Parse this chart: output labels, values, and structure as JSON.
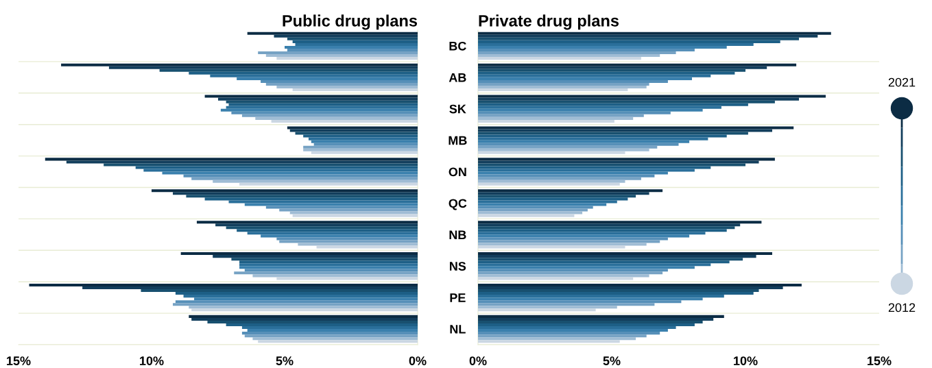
{
  "chart_data": [
    {
      "type": "bar",
      "orientation": "horizontal",
      "title": "Public drug plans",
      "categories": [
        "BC",
        "AB",
        "SK",
        "MB",
        "ON",
        "QC",
        "NB",
        "NS",
        "PE",
        "NL"
      ],
      "xlim": [
        15,
        0
      ],
      "xticks": [
        {
          "value": 15,
          "label": "15%"
        },
        {
          "value": 10,
          "label": "10%"
        },
        {
          "value": 5,
          "label": "5%"
        },
        {
          "value": 0,
          "label": "0%"
        }
      ],
      "grid": "y",
      "legend": false,
      "series": [
        {
          "color": "#0c2c44",
          "values": [
            6.4,
            13.4,
            8.0,
            4.9,
            14.0,
            10.0,
            8.3,
            8.9,
            14.6,
            8.6
          ]
        },
        {
          "color": "#123e5c",
          "values": [
            5.4,
            11.6,
            7.5,
            4.8,
            13.2,
            9.2,
            7.6,
            7.7,
            12.6,
            8.5
          ]
        },
        {
          "color": "#18506f",
          "values": [
            4.9,
            9.7,
            7.2,
            4.6,
            11.8,
            8.7,
            7.2,
            7.0,
            10.4,
            7.9
          ]
        },
        {
          "color": "#1d5f86",
          "values": [
            4.7,
            8.6,
            7.1,
            4.3,
            10.6,
            8.0,
            6.8,
            6.7,
            9.1,
            7.2
          ]
        },
        {
          "color": "#2a6f9a",
          "values": [
            4.6,
            7.8,
            7.2,
            4.1,
            10.3,
            7.1,
            6.4,
            6.7,
            8.8,
            6.6
          ]
        },
        {
          "color": "#3a80ad",
          "values": [
            5.0,
            6.8,
            7.4,
            4.0,
            9.6,
            6.5,
            5.9,
            6.7,
            8.4,
            6.4
          ]
        },
        {
          "color": "#568fb8",
          "values": [
            4.9,
            5.9,
            7.0,
            3.9,
            8.8,
            5.7,
            5.3,
            6.5,
            9.1,
            6.6
          ]
        },
        {
          "color": "#76a2c4",
          "values": [
            6.0,
            5.7,
            6.6,
            4.3,
            8.5,
            5.2,
            5.2,
            6.9,
            9.2,
            6.5
          ]
        },
        {
          "color": "#9fbcd4",
          "values": [
            5.7,
            5.3,
            6.1,
            4.3,
            7.7,
            4.8,
            4.5,
            6.2,
            8.6,
            6.2
          ]
        },
        {
          "color": "#cbd7e3",
          "values": [
            5.3,
            4.7,
            5.5,
            4.0,
            6.7,
            4.7,
            3.8,
            5.3,
            8.5,
            6.0
          ]
        }
      ]
    },
    {
      "type": "bar",
      "orientation": "horizontal",
      "title": "Private drug plans",
      "categories": [
        null,
        null,
        null,
        null,
        null,
        null,
        null,
        null,
        null,
        null
      ],
      "xlim": [
        0,
        15
      ],
      "xticks": [
        {
          "value": 0,
          "label": "0%"
        },
        {
          "value": 5,
          "label": "5%"
        },
        {
          "value": 10,
          "label": "10%"
        },
        {
          "value": 15,
          "label": "15%"
        }
      ],
      "tick_labels": "x",
      "grid": "y",
      "legend": "right",
      "series": [
        {
          "name": "2021",
          "color": "#0c2c44",
          "values": [
            13.2,
            11.9,
            13.0,
            11.8,
            11.1,
            6.9,
            10.6,
            11.0,
            12.1,
            9.2
          ]
        },
        {
          "color": "#123e5c",
          "values": [
            12.7,
            10.8,
            12.0,
            11.0,
            10.5,
            6.4,
            9.8,
            10.4,
            11.4,
            8.8
          ]
        },
        {
          "color": "#18506f",
          "values": [
            12.0,
            10.0,
            11.1,
            10.1,
            10.0,
            5.9,
            9.6,
            9.9,
            10.5,
            8.4
          ]
        },
        {
          "color": "#1d5f86",
          "values": [
            11.3,
            9.6,
            10.1,
            9.3,
            8.7,
            5.6,
            9.3,
            9.4,
            10.3,
            8.1
          ]
        },
        {
          "color": "#2a6f9a",
          "values": [
            10.3,
            8.7,
            9.1,
            8.6,
            8.1,
            5.2,
            8.5,
            8.7,
            9.2,
            7.4
          ]
        },
        {
          "color": "#3a80ad",
          "values": [
            9.3,
            8.0,
            8.4,
            7.9,
            7.1,
            4.8,
            7.9,
            8.1,
            8.4,
            7.1
          ]
        },
        {
          "color": "#568fb8",
          "values": [
            8.1,
            7.1,
            7.2,
            7.5,
            6.6,
            4.3,
            7.1,
            7.1,
            7.6,
            6.8
          ]
        },
        {
          "color": "#76a2c4",
          "values": [
            7.4,
            6.4,
            6.2,
            6.7,
            6.1,
            4.1,
            6.8,
            6.9,
            6.6,
            6.3
          ]
        },
        {
          "color": "#9fbcd4",
          "values": [
            6.8,
            6.3,
            5.8,
            6.4,
            5.5,
            3.9,
            6.3,
            6.4,
            5.2,
            5.9
          ]
        },
        {
          "name": "2012",
          "color": "#cbd7e3",
          "values": [
            6.1,
            5.6,
            5.1,
            5.5,
            5.3,
            3.6,
            5.5,
            5.8,
            4.4,
            5.3
          ]
        }
      ]
    }
  ]
}
